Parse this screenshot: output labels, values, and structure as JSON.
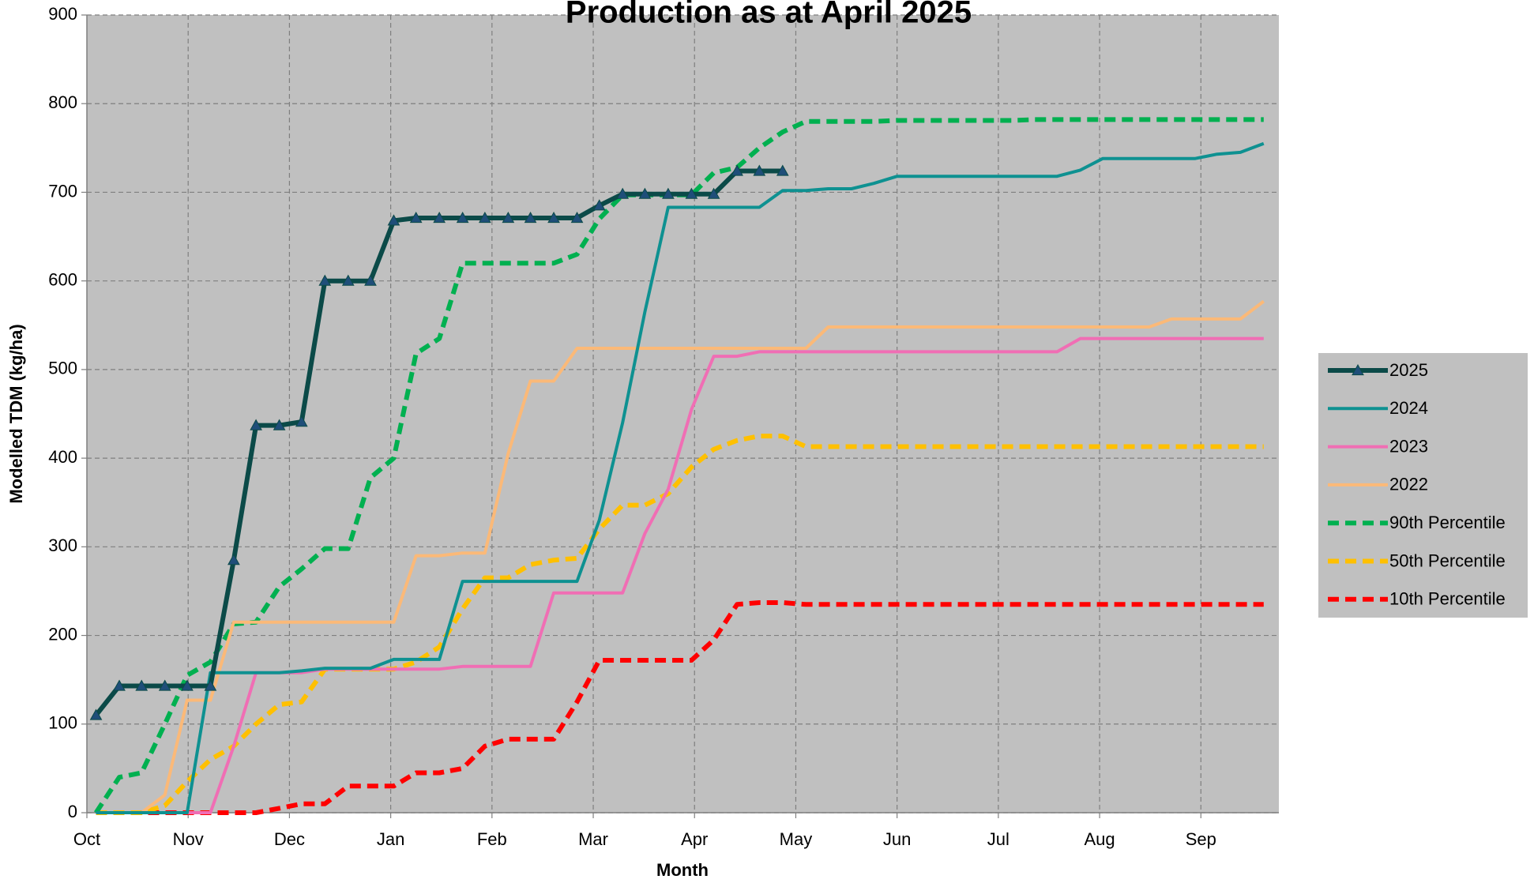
{
  "chart_data": {
    "type": "line",
    "title": "Production as at April 2025",
    "x_label": "Month",
    "y_label": "Modelled TDM (kg/ha)",
    "x": [
      0.09,
      0.32,
      0.54,
      0.77,
      0.99,
      1.22,
      1.45,
      1.67,
      1.9,
      2.12,
      2.35,
      2.58,
      2.8,
      3.03,
      3.25,
      3.48,
      3.71,
      3.93,
      4.16,
      4.38,
      4.61,
      4.84,
      5.06,
      5.29,
      5.51,
      5.74,
      5.97,
      6.19,
      6.42,
      6.64,
      6.87,
      7.1,
      7.32,
      7.55,
      7.77,
      8.0,
      8.23,
      8.45,
      8.68,
      8.9,
      9.13,
      9.36,
      9.58,
      9.81,
      10.03,
      10.26,
      10.49,
      10.71,
      10.94,
      11.16,
      11.39,
      11.62
    ],
    "xlim": [
      0,
      11.77
    ],
    "xticks": [
      {
        "value": 0,
        "label": "Oct"
      },
      {
        "value": 1,
        "label": "Nov"
      },
      {
        "value": 2,
        "label": "Dec"
      },
      {
        "value": 3,
        "label": "Jan"
      },
      {
        "value": 4,
        "label": "Feb"
      },
      {
        "value": 5,
        "label": "Mar"
      },
      {
        "value": 6,
        "label": "Apr"
      },
      {
        "value": 7,
        "label": "May"
      },
      {
        "value": 8,
        "label": "Jun"
      },
      {
        "value": 9,
        "label": "Jul"
      },
      {
        "value": 10,
        "label": "Aug"
      },
      {
        "value": 11,
        "label": "Sep"
      }
    ],
    "ylim": [
      0,
      900
    ],
    "yticks": [
      0,
      100,
      200,
      300,
      400,
      500,
      600,
      700,
      800,
      900
    ],
    "grid": true,
    "legend": "right",
    "plot_background": "#c0c0c0",
    "series": [
      {
        "name": "2025",
        "color": "#0b4a48",
        "width": 6,
        "dashed": false,
        "marker": "triangle",
        "marker_color": "#1f4e79",
        "values": [
          110,
          143,
          143,
          143,
          143,
          143,
          285,
          437,
          437,
          441,
          600,
          600,
          600,
          668,
          671,
          671,
          671,
          671,
          671,
          671,
          671,
          671,
          685,
          698,
          698,
          698,
          698,
          698,
          724,
          724,
          724,
          null,
          null,
          null,
          null,
          null,
          null,
          null,
          null,
          null,
          null,
          null,
          null,
          null,
          null,
          null,
          null,
          null,
          null,
          null,
          null,
          null
        ]
      },
      {
        "name": "2024",
        "color": "#0e9191",
        "width": 4,
        "dashed": false,
        "values": [
          0,
          0,
          0,
          0,
          0,
          158,
          158,
          158,
          158,
          160,
          163,
          163,
          163,
          173,
          173,
          173,
          261,
          261,
          261,
          261,
          261,
          261,
          330,
          440,
          565,
          683,
          683,
          683,
          683,
          683,
          702,
          702,
          704,
          704,
          710,
          718,
          718,
          718,
          718,
          718,
          718,
          718,
          718,
          725,
          738,
          738,
          738,
          738,
          738,
          743,
          745,
          755
        ]
      },
      {
        "name": "2023",
        "color": "#f06eb4",
        "width": 4,
        "dashed": false,
        "values": [
          0,
          0,
          0,
          0,
          0,
          0,
          75,
          158,
          158,
          158,
          162,
          162,
          162,
          162,
          162,
          162,
          165,
          165,
          165,
          165,
          248,
          248,
          248,
          248,
          315,
          365,
          455,
          515,
          515,
          520,
          520,
          520,
          520,
          520,
          520,
          520,
          520,
          520,
          520,
          520,
          520,
          520,
          520,
          535,
          535,
          535,
          535,
          535,
          535,
          535,
          535,
          535
        ]
      },
      {
        "name": "2022",
        "color": "#fbb978",
        "width": 4,
        "dashed": false,
        "values": [
          0,
          0,
          0,
          20,
          127,
          127,
          215,
          215,
          215,
          215,
          215,
          215,
          215,
          215,
          290,
          290,
          293,
          293,
          405,
          487,
          487,
          524,
          524,
          524,
          524,
          524,
          524,
          524,
          524,
          524,
          524,
          524,
          548,
          548,
          548,
          548,
          548,
          548,
          548,
          548,
          548,
          548,
          548,
          548,
          548,
          548,
          548,
          557,
          557,
          557,
          557,
          577
        ]
      },
      {
        "name": "90th Percentile",
        "color": "#00b050",
        "width": 6,
        "dashed": true,
        "values": [
          0,
          40,
          45,
          100,
          155,
          170,
          213,
          215,
          255,
          275,
          298,
          298,
          378,
          400,
          518,
          535,
          620,
          620,
          620,
          620,
          620,
          630,
          670,
          697,
          697,
          697,
          697,
          722,
          728,
          750,
          768,
          780,
          780,
          780,
          780,
          781,
          781,
          781,
          781,
          781,
          781,
          782,
          782,
          782,
          782,
          782,
          782,
          782,
          782,
          782,
          782,
          782
        ]
      },
      {
        "name": "50th Percentile",
        "color": "#ffc000",
        "width": 6,
        "dashed": true,
        "values": [
          0,
          0,
          0,
          8,
          35,
          60,
          75,
          100,
          122,
          125,
          162,
          162,
          162,
          162,
          170,
          187,
          230,
          265,
          265,
          280,
          285,
          287,
          320,
          347,
          347,
          360,
          390,
          410,
          420,
          425,
          425,
          413,
          413,
          413,
          413,
          413,
          413,
          413,
          413,
          413,
          413,
          413,
          413,
          413,
          413,
          413,
          413,
          413,
          413,
          413,
          413,
          413
        ]
      },
      {
        "name": "10th Percentile",
        "color": "#ff0000",
        "width": 6,
        "dashed": true,
        "values": [
          0,
          0,
          0,
          0,
          0,
          0,
          0,
          0,
          5,
          10,
          10,
          30,
          30,
          30,
          45,
          45,
          50,
          75,
          83,
          83,
          83,
          125,
          172,
          172,
          172,
          172,
          172,
          195,
          235,
          237,
          237,
          235,
          235,
          235,
          235,
          235,
          235,
          235,
          235,
          235,
          235,
          235,
          235,
          235,
          235,
          235,
          235,
          235,
          235,
          235,
          235,
          235
        ]
      }
    ]
  }
}
